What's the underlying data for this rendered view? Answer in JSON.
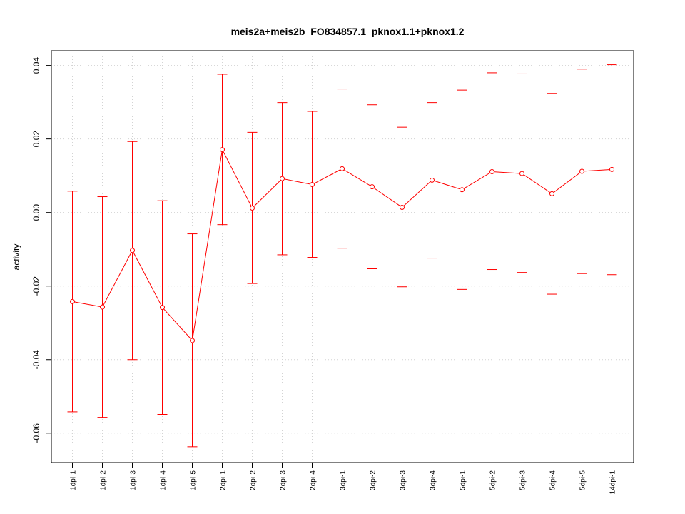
{
  "chart_data": {
    "type": "line",
    "title": "meis2a+meis2b_FO834857.1_pknox1.1+pknox1.2",
    "xlabel": "",
    "ylabel": "activity",
    "ylim": [
      -0.068,
      0.044
    ],
    "yticks": [
      -0.06,
      -0.04,
      -0.02,
      0.0,
      0.02,
      0.04
    ],
    "ytick_labels": [
      "-0.06",
      "-0.04",
      "-0.02",
      "0.00",
      "0.02",
      "0.04"
    ],
    "grid": true,
    "categories": [
      "1dpi-1",
      "1dpi-2",
      "1dpi-3",
      "1dpi-4",
      "1dpi-5",
      "2dpi-1",
      "2dpi-2",
      "2dpi-3",
      "2dpi-4",
      "3dpi-1",
      "3dpi-2",
      "3dpi-3",
      "3dpi-4",
      "5dpi-1",
      "5dpi-2",
      "5dpi-3",
      "5dpi-4",
      "5dpi-5",
      "14dpi-1"
    ],
    "series": [
      {
        "color": "#ff0000",
        "values": [
          -0.0242,
          -0.0257,
          -0.0103,
          -0.0258,
          -0.0348,
          0.0171,
          0.0012,
          0.0092,
          0.0076,
          0.0119,
          0.007,
          0.0014,
          0.0088,
          0.0062,
          0.0111,
          0.0106,
          0.0051,
          0.0112,
          0.0117
        ],
        "upper": [
          0.0058,
          0.0043,
          0.0193,
          0.0032,
          -0.0058,
          0.0376,
          0.0218,
          0.0299,
          0.0275,
          0.0336,
          0.0293,
          0.0232,
          0.0299,
          0.0333,
          0.038,
          0.0377,
          0.0324,
          0.039,
          0.0402
        ],
        "lower": [
          -0.0542,
          -0.0557,
          -0.04,
          -0.0549,
          -0.0637,
          -0.0033,
          -0.0193,
          -0.0115,
          -0.0122,
          -0.0097,
          -0.0153,
          -0.0202,
          -0.0124,
          -0.0209,
          -0.0155,
          -0.0163,
          -0.0222,
          -0.0166,
          -0.0169
        ]
      }
    ]
  }
}
